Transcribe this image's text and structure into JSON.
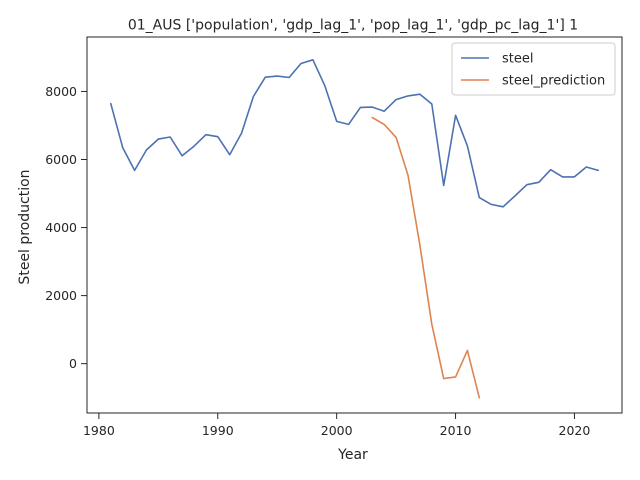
{
  "chart_data": {
    "type": "line",
    "title": "01_AUS ['population', 'gdp_lag_1', 'pop_lag_1', 'gdp_pc_lag_1'] 1",
    "xlabel": "Year",
    "ylabel": "Steel production",
    "xlim": [
      1979,
      2024
    ],
    "ylim": [
      -1450,
      9600
    ],
    "xticks": [
      1980,
      1990,
      2000,
      2010,
      2020
    ],
    "yticks": [
      0,
      2000,
      4000,
      6000,
      8000
    ],
    "grid": false,
    "legend": "top-right",
    "series": [
      {
        "name": "steel",
        "color": "#4c72b0",
        "x": [
          1981,
          1982,
          1983,
          1984,
          1985,
          1986,
          1987,
          1988,
          1989,
          1990,
          1991,
          1992,
          1993,
          1994,
          1995,
          1996,
          1997,
          1998,
          1999,
          2000,
          2001,
          2002,
          2003,
          2004,
          2005,
          2006,
          2007,
          2008,
          2009,
          2010,
          2011,
          2012,
          2013,
          2014,
          2015,
          2016,
          2017,
          2018,
          2019,
          2020,
          2021,
          2022
        ],
        "values": [
          7640,
          6350,
          5680,
          6280,
          6600,
          6660,
          6110,
          6390,
          6730,
          6670,
          6140,
          6780,
          7850,
          8420,
          8450,
          8410,
          8820,
          8930,
          8170,
          7120,
          7030,
          7530,
          7540,
          7420,
          7760,
          7870,
          7920,
          7630,
          5240,
          7300,
          6400,
          4880,
          4680,
          4610,
          4930,
          5260,
          5330,
          5700,
          5490,
          5490,
          5780,
          5680
        ]
      },
      {
        "name": "steel_prediction",
        "color": "#dd8452",
        "x": [
          2003,
          2004,
          2005,
          2006,
          2007,
          2008,
          2009,
          2010,
          2011,
          2012
        ],
        "values": [
          7230,
          7030,
          6650,
          5540,
          3480,
          1160,
          -440,
          -390,
          390,
          -1000
        ]
      }
    ]
  }
}
